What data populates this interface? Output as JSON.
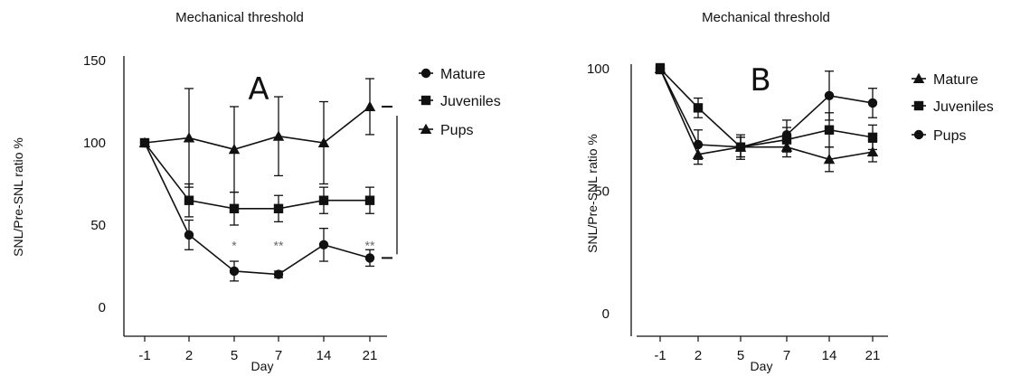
{
  "chart_data": [
    {
      "type": "line",
      "title": "Mechanical threshold",
      "panel_label": "A",
      "xlabel": "Day",
      "ylabel": "SNL/Pre-SNL ratio %",
      "categories": [
        "-1",
        "2",
        "5",
        "7",
        "14",
        "21"
      ],
      "ylim": [
        0,
        150
      ],
      "yticks": [
        "0",
        "50",
        "100",
        "150"
      ],
      "legend_position": "right",
      "series": [
        {
          "name": "Mature",
          "marker": "circle",
          "values": [
            100,
            44,
            22,
            20,
            38,
            30
          ],
          "errors": [
            2,
            9,
            6,
            2,
            10,
            5
          ]
        },
        {
          "name": "Juveniles",
          "marker": "square",
          "values": [
            100,
            65,
            60,
            60,
            65,
            65
          ],
          "errors": [
            2,
            10,
            10,
            8,
            8,
            8
          ]
        },
        {
          "name": "Pups",
          "marker": "triangle",
          "values": [
            100,
            103,
            96,
            104,
            100,
            122
          ],
          "errors": [
            2,
            30,
            26,
            24,
            25,
            17
          ]
        }
      ],
      "annotations": [
        {
          "text": "*",
          "x": "5",
          "y": 35
        },
        {
          "text": "**",
          "x": "7",
          "y": 35
        },
        {
          "text": "**",
          "x": "21",
          "y": 35
        }
      ],
      "significance_bracket": {
        "from_series": "Pups",
        "to_series": "Mature",
        "x": "21"
      }
    },
    {
      "type": "line",
      "title": "Mechanical threshold",
      "panel_label": "B",
      "xlabel": "Day",
      "ylabel": "SNL/Pre-SNL ratio %",
      "categories": [
        "-1",
        "2",
        "5",
        "7",
        "14",
        "21"
      ],
      "ylim": [
        0,
        100
      ],
      "yticks": [
        "0",
        "50",
        "100"
      ],
      "legend_position": "right",
      "series": [
        {
          "name": "Mature",
          "marker": "triangle",
          "values": [
            100,
            65,
            68,
            68,
            63,
            66
          ],
          "errors": [
            2,
            4,
            4,
            4,
            5,
            4
          ]
        },
        {
          "name": "Juveniles",
          "marker": "square",
          "values": [
            100,
            84,
            68,
            71,
            75,
            72
          ],
          "errors": [
            2,
            4,
            4,
            5,
            7,
            5
          ]
        },
        {
          "name": "Pups",
          "marker": "circle",
          "values": [
            100,
            69,
            68,
            73,
            89,
            86
          ],
          "errors": [
            2,
            6,
            5,
            6,
            10,
            6
          ]
        }
      ]
    }
  ]
}
